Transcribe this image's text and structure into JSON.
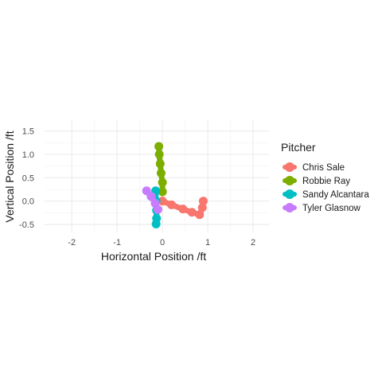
{
  "chart_data": {
    "type": "line",
    "title": "",
    "xlabel": "Horizontal Position /ft",
    "ylabel": "Vertical Position /ft",
    "xlim": [
      -2.6,
      2.35
    ],
    "ylim": [
      -0.67,
      1.75
    ],
    "x_ticks": [
      -2,
      -1,
      0,
      1,
      2
    ],
    "y_ticks": [
      -0.5,
      0.0,
      0.5,
      1.0,
      1.5
    ],
    "x_tick_labels": [
      "-2",
      "-1",
      "0",
      "1",
      "2"
    ],
    "y_tick_labels": [
      "-0.5",
      "0.0",
      "0.5",
      "1.0",
      "1.5"
    ],
    "grid": true,
    "legend_position": "right",
    "legend_title": "Pitcher",
    "series": [
      {
        "name": "Chris Sale",
        "color": "#F8766D",
        "points": [
          [
            0.0,
            0.0
          ],
          [
            0.2,
            -0.08
          ],
          [
            0.45,
            -0.17
          ],
          [
            0.65,
            -0.24
          ],
          [
            0.82,
            -0.29
          ],
          [
            0.88,
            -0.14
          ],
          [
            0.9,
            0.0
          ]
        ]
      },
      {
        "name": "Robbie Ray",
        "color": "#7CAE00",
        "points": [
          [
            0.0,
            0.2
          ],
          [
            0.0,
            0.4
          ],
          [
            -0.03,
            0.6
          ],
          [
            -0.05,
            0.8
          ],
          [
            -0.07,
            1.0
          ],
          [
            -0.08,
            1.17
          ]
        ]
      },
      {
        "name": "Sandy Alcantara",
        "color": "#00BFC4",
        "points": [
          [
            -0.15,
            0.22
          ],
          [
            -0.14,
            0.0
          ],
          [
            -0.13,
            -0.2
          ],
          [
            -0.13,
            -0.37
          ],
          [
            -0.14,
            -0.49
          ]
        ]
      },
      {
        "name": "Tyler Glasnow",
        "color": "#C77CFF",
        "points": [
          [
            -0.35,
            0.22
          ],
          [
            -0.25,
            0.1
          ],
          [
            -0.16,
            -0.05
          ],
          [
            -0.1,
            -0.18
          ]
        ]
      }
    ]
  }
}
